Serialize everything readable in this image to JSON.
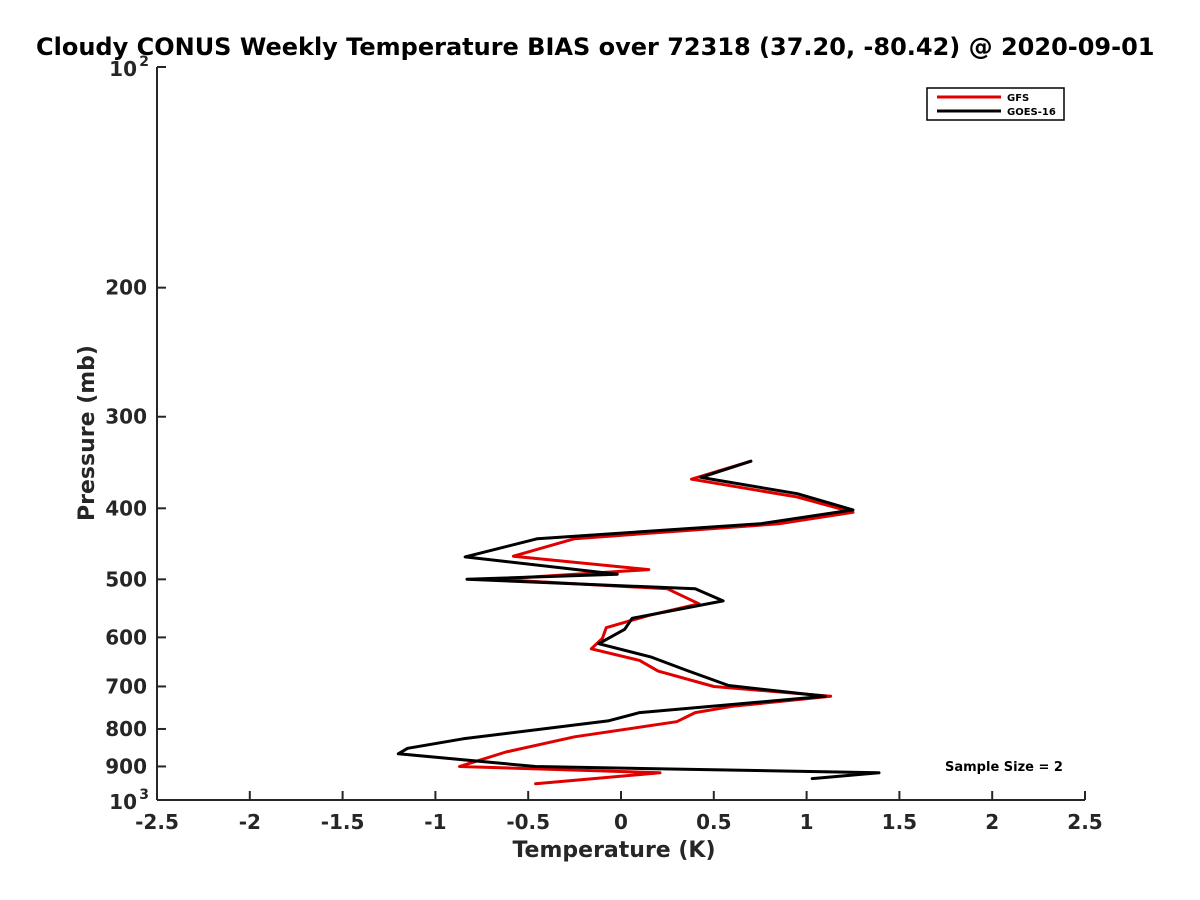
{
  "chart_data": {
    "type": "line",
    "title": "Cloudy CONUS Weekly Temperature BIAS over 72318 (37.20, -80.42) @ 2020-09-01",
    "xlabel": "Temperature (K)",
    "ylabel": "Pressure (mb)",
    "xlim": [
      -2.5,
      2.5
    ],
    "ylim": [
      1000,
      100
    ],
    "yscale": "log",
    "x_ticks": [
      "-2.5",
      "-2",
      "-1.5",
      "-1",
      "-0.5",
      "0",
      "0.5",
      "1",
      "1.5",
      "2",
      "2.5"
    ],
    "y_ticks": [
      {
        "value": 100,
        "base": "10",
        "exp": "2"
      },
      {
        "value": 200,
        "label": "200"
      },
      {
        "value": 300,
        "label": "300"
      },
      {
        "value": 400,
        "label": "400"
      },
      {
        "value": 500,
        "label": "500"
      },
      {
        "value": 600,
        "label": "600"
      },
      {
        "value": 700,
        "label": "700"
      },
      {
        "value": 800,
        "label": "800"
      },
      {
        "value": 900,
        "label": "900"
      },
      {
        "value": 1000,
        "base": "10",
        "exp": "3"
      }
    ],
    "grid": false,
    "legend_position": "top-right",
    "annotation": "Sample Size = 2",
    "series": [
      {
        "name": "GFS",
        "color": "#e00000",
        "points": [
          [
            0.7,
            345
          ],
          [
            0.38,
            365
          ],
          [
            0.95,
            386
          ],
          [
            1.25,
            405
          ],
          [
            0.85,
            420
          ],
          [
            -0.25,
            440
          ],
          [
            -0.58,
            465
          ],
          [
            0.15,
            485
          ],
          [
            -0.68,
            500
          ],
          [
            0.25,
            515
          ],
          [
            0.42,
            540
          ],
          [
            0.15,
            560
          ],
          [
            -0.08,
            582
          ],
          [
            -0.1,
            602
          ],
          [
            -0.16,
            622
          ],
          [
            0.1,
            645
          ],
          [
            0.2,
            667
          ],
          [
            0.5,
            700
          ],
          [
            1.13,
            722
          ],
          [
            0.6,
            745
          ],
          [
            0.4,
            760
          ],
          [
            0.3,
            782
          ],
          [
            -0.25,
            820
          ],
          [
            -0.62,
            860
          ],
          [
            -0.87,
            900
          ],
          [
            0.21,
            918
          ],
          [
            -0.46,
            950
          ]
        ]
      },
      {
        "name": "GOES-16",
        "color": "#000000",
        "points": [
          [
            0.7,
            345
          ],
          [
            0.43,
            363
          ],
          [
            0.95,
            382
          ],
          [
            1.25,
            402
          ],
          [
            0.75,
            420
          ],
          [
            -0.45,
            440
          ],
          [
            -0.84,
            466
          ],
          [
            -0.02,
            492
          ],
          [
            -0.83,
            500
          ],
          [
            0.4,
            515
          ],
          [
            0.55,
            535
          ],
          [
            0.06,
            565
          ],
          [
            0.02,
            585
          ],
          [
            -0.12,
            612
          ],
          [
            0.16,
            638
          ],
          [
            0.35,
            665
          ],
          [
            0.58,
            698
          ],
          [
            1.1,
            722
          ],
          [
            0.1,
            760
          ],
          [
            -0.07,
            780
          ],
          [
            -0.85,
            825
          ],
          [
            -1.15,
            850
          ],
          [
            -1.2,
            865
          ],
          [
            -0.46,
            900
          ],
          [
            1.39,
            918
          ],
          [
            1.03,
            935
          ]
        ]
      }
    ]
  }
}
